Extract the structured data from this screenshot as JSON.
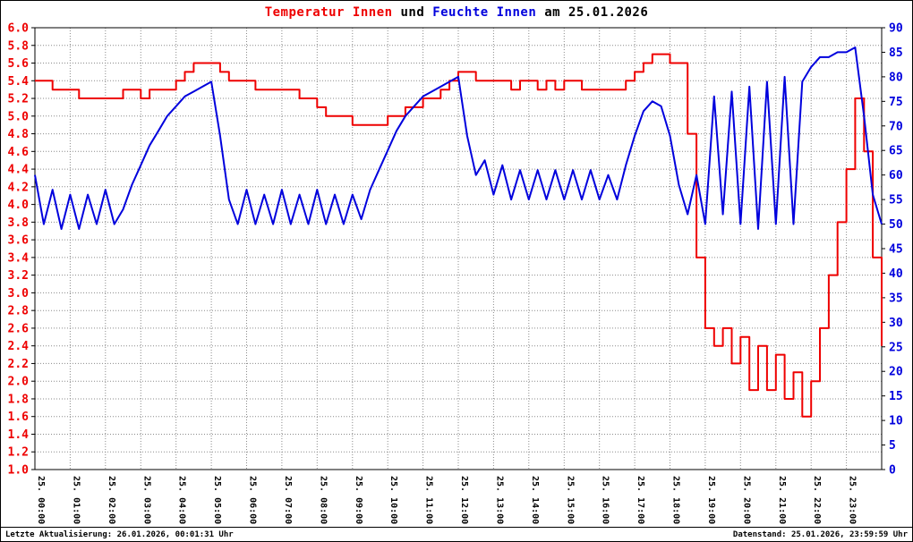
{
  "header": {
    "temp_label": "Temperatur Innen",
    "connector": " und ",
    "hum_label": "Feuchte Innen",
    "date_label": " am 25.01.2026"
  },
  "footer": {
    "last_update": "Letzte Aktualisierung: 26.01.2026, 00:01:31 Uhr",
    "data_state": "Datenstand: 25.01.2026, 23:59:59 Uhr"
  },
  "chart_data": {
    "type": "line",
    "title": "Temperatur Innen und Feuchte Innen am 25.01.2026",
    "grid": "dotted",
    "x_range": [
      0,
      24
    ],
    "x_tick_labels": [
      "25. 00:00",
      "25. 01:00",
      "25. 02:00",
      "25. 03:00",
      "25. 04:00",
      "25. 05:00",
      "25. 06:00",
      "25. 07:00",
      "25. 08:00",
      "25. 09:00",
      "25. 10:00",
      "25. 11:00",
      "25. 12:00",
      "25. 13:00",
      "25. 14:00",
      "25. 15:00",
      "25. 16:00",
      "25. 17:00",
      "25. 18:00",
      "25. 19:00",
      "25. 20:00",
      "25. 21:00",
      "25. 22:00",
      "25. 23:00"
    ],
    "left_axis": {
      "min": 1.0,
      "max": 6.0,
      "tick_step": 0.2,
      "color": "#ee0000",
      "ticks": [
        "1.0",
        "1.2",
        "1.4",
        "1.6",
        "1.8",
        "2.0",
        "2.2",
        "2.4",
        "2.6",
        "2.8",
        "3.0",
        "3.2",
        "3.4",
        "3.6",
        "3.8",
        "4.0",
        "4.2",
        "4.4",
        "4.6",
        "4.8",
        "5.0",
        "5.2",
        "5.4",
        "5.6",
        "5.8",
        "6.0"
      ]
    },
    "right_axis": {
      "min": 0,
      "max": 90,
      "tick_step": 5,
      "color": "#0000dd",
      "ticks": [
        "0",
        "5",
        "10",
        "15",
        "20",
        "25",
        "30",
        "35",
        "40",
        "45",
        "50",
        "55",
        "60",
        "65",
        "70",
        "75",
        "80",
        "85",
        "90"
      ]
    },
    "x": [
      0,
      0.25,
      0.5,
      0.75,
      1,
      1.25,
      1.5,
      1.75,
      2,
      2.25,
      2.5,
      2.75,
      3,
      3.25,
      3.5,
      3.75,
      4,
      4.25,
      4.5,
      4.75,
      5,
      5.25,
      5.5,
      5.75,
      6,
      6.25,
      6.5,
      6.75,
      7,
      7.25,
      7.5,
      7.75,
      8,
      8.25,
      8.5,
      8.75,
      9,
      9.25,
      9.5,
      9.75,
      10,
      10.25,
      10.5,
      10.75,
      11,
      11.25,
      11.5,
      11.75,
      12,
      12.25,
      12.5,
      12.75,
      13,
      13.25,
      13.5,
      13.75,
      14,
      14.25,
      14.5,
      14.75,
      15,
      15.25,
      15.5,
      15.75,
      16,
      16.25,
      16.5,
      16.75,
      17,
      17.25,
      17.5,
      17.75,
      18,
      18.25,
      18.5,
      18.75,
      19,
      19.25,
      19.5,
      19.75,
      20,
      20.25,
      20.5,
      20.75,
      21,
      21.25,
      21.5,
      21.75,
      22,
      22.25,
      22.5,
      22.75,
      23,
      23.25,
      23.5,
      23.75,
      24
    ],
    "series": [
      {
        "name": "Temperatur Innen",
        "axis": "left",
        "color": "#ee0000",
        "interpolation": "step",
        "values": [
          5.4,
          5.4,
          5.3,
          5.3,
          5.3,
          5.2,
          5.2,
          5.2,
          5.2,
          5.2,
          5.3,
          5.3,
          5.2,
          5.3,
          5.3,
          5.3,
          5.4,
          5.5,
          5.6,
          5.6,
          5.6,
          5.5,
          5.4,
          5.4,
          5.4,
          5.3,
          5.3,
          5.3,
          5.3,
          5.3,
          5.2,
          5.2,
          5.1,
          5.0,
          5.0,
          5.0,
          4.9,
          4.9,
          4.9,
          4.9,
          5.0,
          5.0,
          5.1,
          5.1,
          5.2,
          5.2,
          5.3,
          5.4,
          5.5,
          5.5,
          5.4,
          5.4,
          5.4,
          5.4,
          5.3,
          5.4,
          5.4,
          5.3,
          5.4,
          5.3,
          5.4,
          5.4,
          5.3,
          5.3,
          5.3,
          5.3,
          5.3,
          5.4,
          5.5,
          5.6,
          5.7,
          5.7,
          5.6,
          5.6,
          4.8,
          3.4,
          2.6,
          2.4,
          2.6,
          2.2,
          2.5,
          1.9,
          2.4,
          1.9,
          2.3,
          1.8,
          2.1,
          1.6,
          2.0,
          2.6,
          3.2,
          3.8,
          4.4,
          5.2,
          4.6,
          3.4,
          2.4
        ]
      },
      {
        "name": "Feuchte Innen",
        "axis": "right",
        "color": "#0000dd",
        "interpolation": "linear",
        "values": [
          60,
          50,
          57,
          49,
          56,
          49,
          56,
          50,
          57,
          50,
          53,
          58,
          62,
          66,
          69,
          72,
          74,
          76,
          77,
          78,
          79,
          68,
          55,
          50,
          57,
          50,
          56,
          50,
          57,
          50,
          56,
          50,
          57,
          50,
          56,
          50,
          56,
          51,
          57,
          61,
          65,
          69,
          72,
          74,
          76,
          77,
          78,
          79,
          80,
          68,
          60,
          63,
          56,
          62,
          55,
          61,
          55,
          61,
          55,
          61,
          55,
          61,
          55,
          61,
          55,
          60,
          55,
          62,
          68,
          73,
          75,
          74,
          68,
          58,
          52,
          60,
          50,
          76,
          52,
          77,
          50,
          78,
          49,
          79,
          50,
          80,
          50,
          79,
          82,
          84,
          84,
          85,
          85,
          86,
          72,
          56,
          50
        ]
      }
    ]
  }
}
